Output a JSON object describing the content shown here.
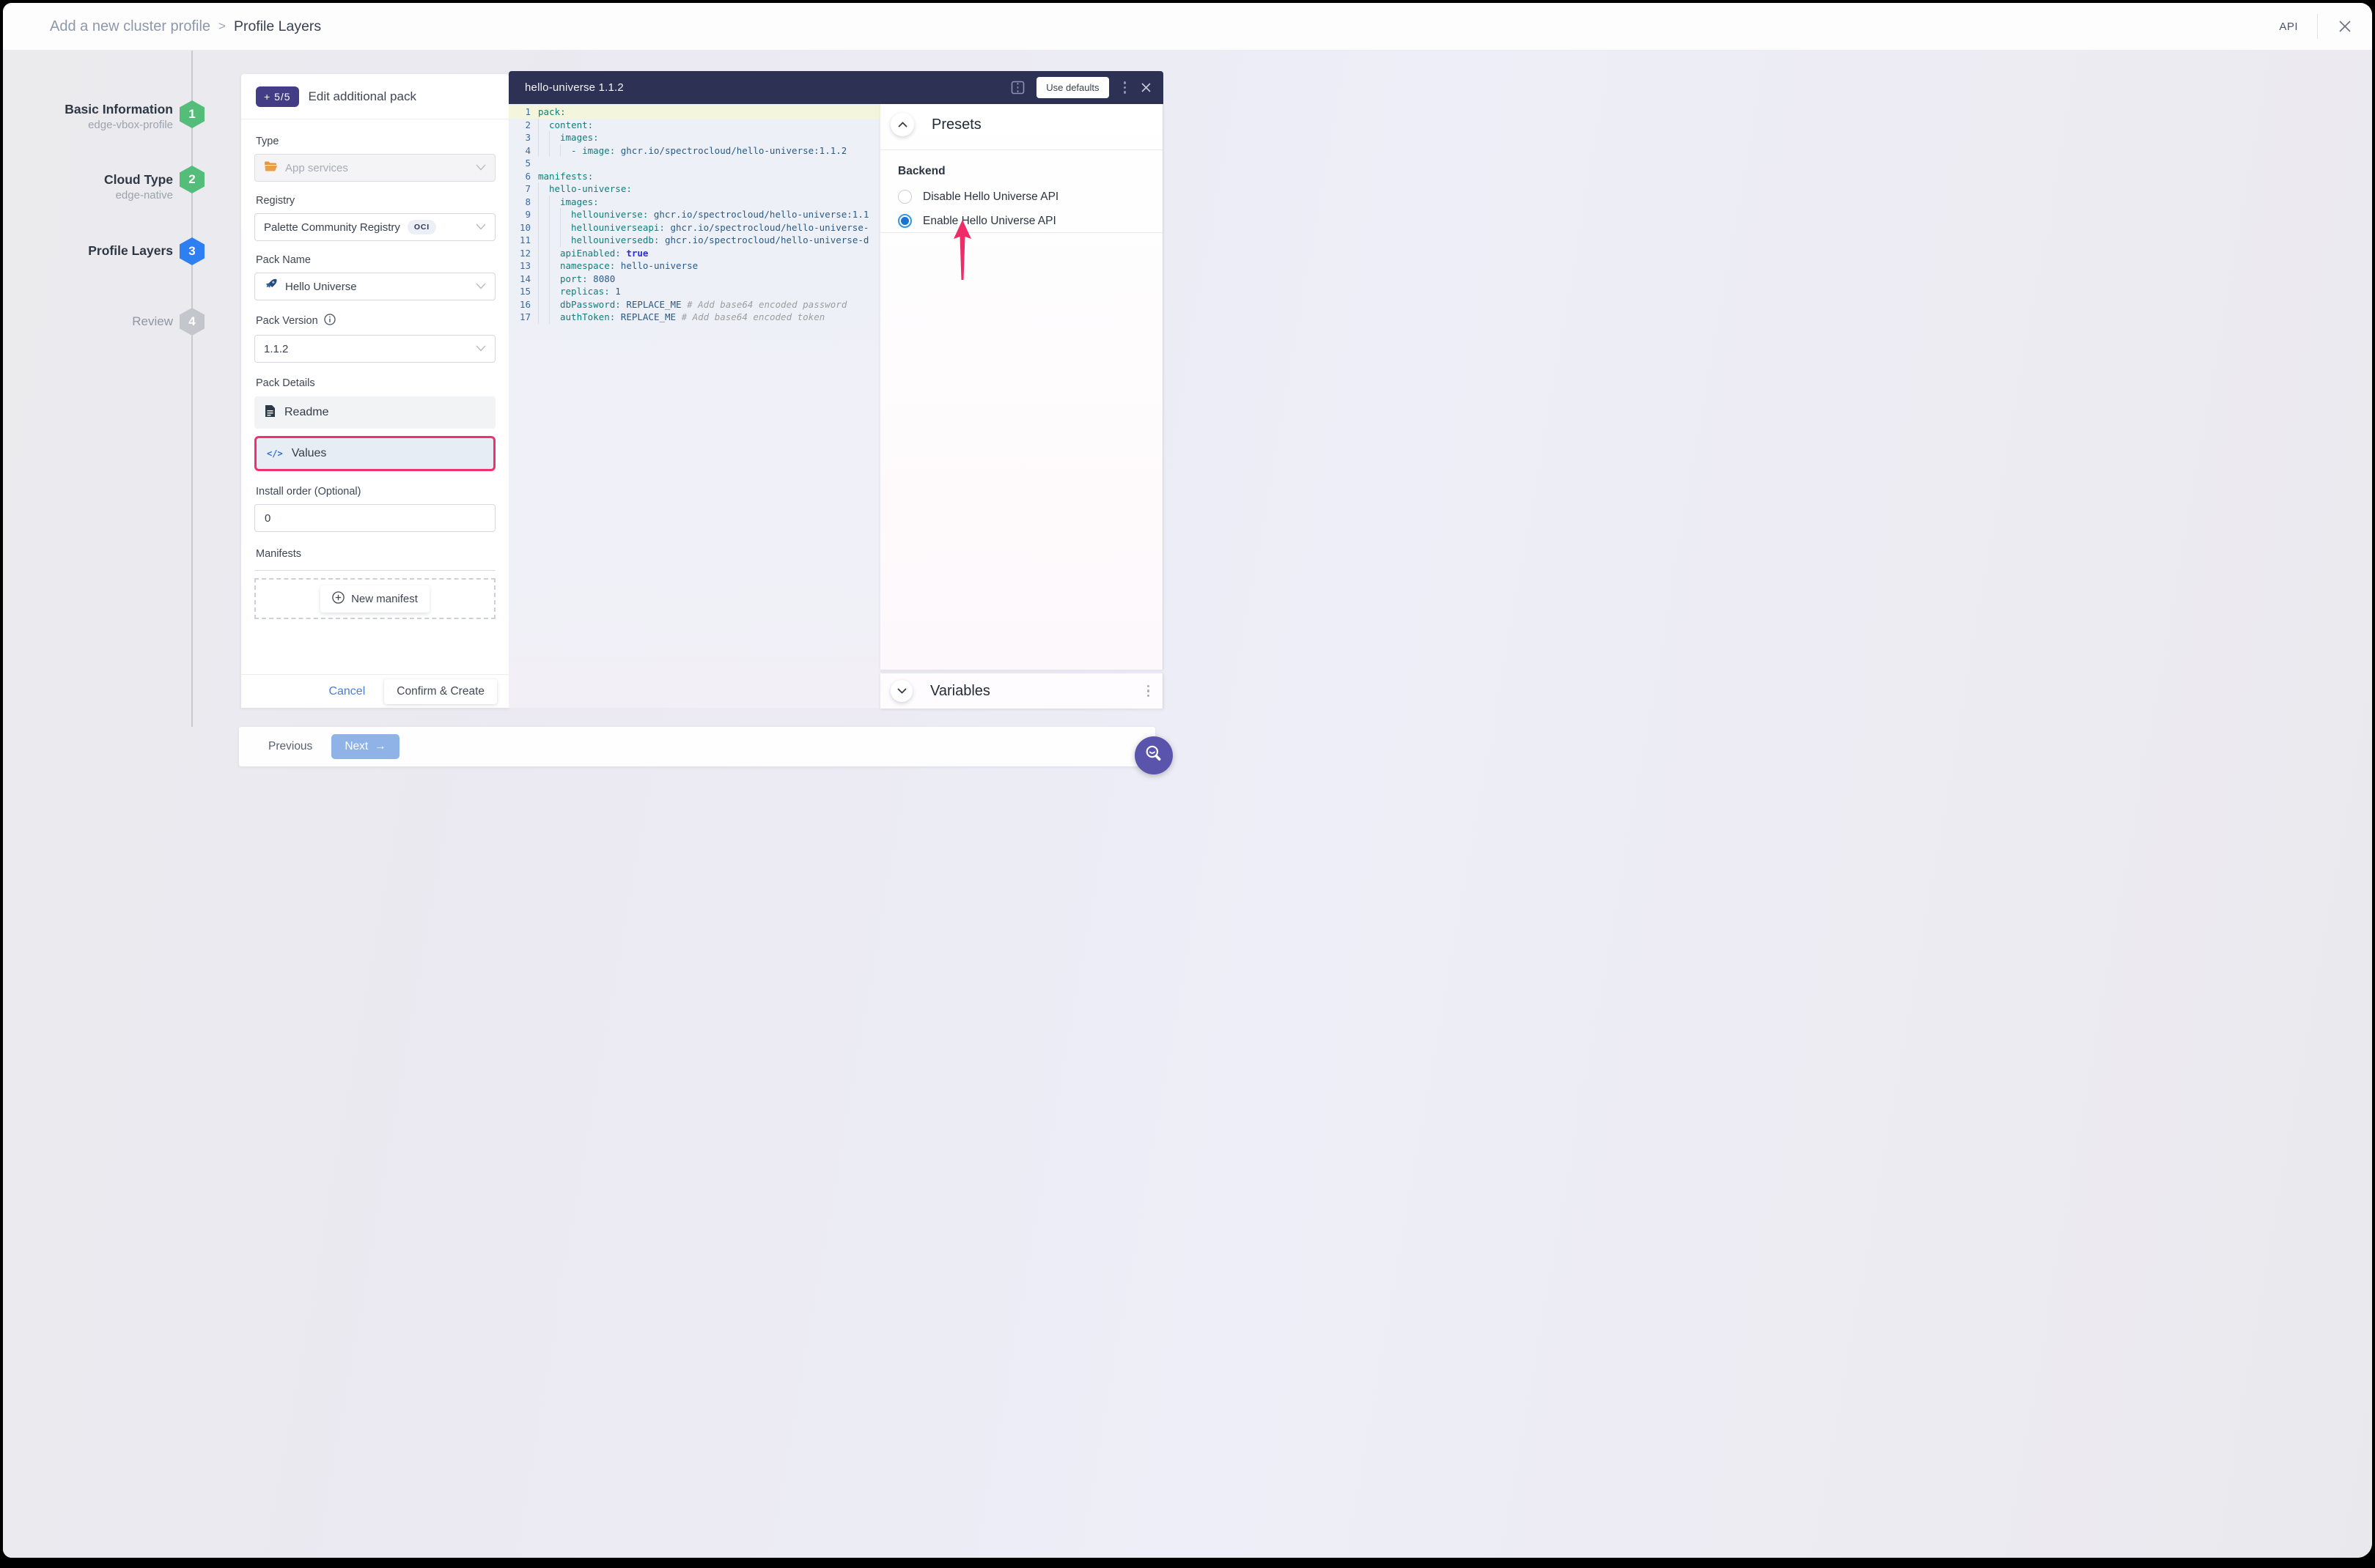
{
  "header": {
    "breadcrumb_parent": "Add a new cluster profile",
    "breadcrumb_sep": ">",
    "breadcrumb_current": "Profile Layers",
    "api_label": "API"
  },
  "stepper": {
    "steps": [
      {
        "num": "1",
        "label": "Basic Information",
        "sublabel": "edge-vbox-profile",
        "state": "done"
      },
      {
        "num": "2",
        "label": "Cloud Type",
        "sublabel": "edge-native",
        "state": "done"
      },
      {
        "num": "3",
        "label": "Profile Layers",
        "sublabel": "",
        "state": "active"
      },
      {
        "num": "4",
        "label": "Review",
        "sublabel": "",
        "state": "todo"
      }
    ]
  },
  "form": {
    "badge": "+ 5/5",
    "title": "Edit additional pack",
    "type": {
      "label": "Type",
      "value": "App services"
    },
    "registry": {
      "label": "Registry",
      "value": "Palette Community Registry",
      "badge": "OCI"
    },
    "pack_name": {
      "label": "Pack Name",
      "value": "Hello Universe"
    },
    "pack_version": {
      "label": "Pack Version",
      "value": "1.1.2"
    },
    "pack_details": {
      "label": "Pack Details",
      "readme": "Readme",
      "values": "Values",
      "values_glyph": "</>"
    },
    "install_order": {
      "label": "Install order (Optional)",
      "value": "0"
    },
    "manifests": {
      "label": "Manifests",
      "new_manifest": "New manifest"
    },
    "cancel": "Cancel",
    "confirm": "Confirm & Create"
  },
  "editor": {
    "title": "hello-universe 1.1.2",
    "use_defaults": "Use defaults",
    "lines": [
      {
        "n": "1",
        "i": 0,
        "hl": true,
        "t": [
          [
            "k",
            "pack:"
          ]
        ]
      },
      {
        "n": "2",
        "i": 1,
        "t": [
          [
            "k",
            "content:"
          ]
        ]
      },
      {
        "n": "3",
        "i": 2,
        "t": [
          [
            "k",
            "images:"
          ]
        ]
      },
      {
        "n": "4",
        "i": 3,
        "t": [
          [
            "d",
            "- "
          ],
          [
            "k",
            "image:"
          ],
          [
            "v",
            " ghcr.io/spectrocloud/hello-universe:1.1.2"
          ]
        ]
      },
      {
        "n": "5",
        "i": 0,
        "t": []
      },
      {
        "n": "6",
        "i": 0,
        "t": [
          [
            "k",
            "manifests:"
          ]
        ]
      },
      {
        "n": "7",
        "i": 1,
        "t": [
          [
            "k",
            "hello-universe:"
          ]
        ]
      },
      {
        "n": "8",
        "i": 2,
        "t": [
          [
            "k",
            "images:"
          ]
        ]
      },
      {
        "n": "9",
        "i": 3,
        "t": [
          [
            "k",
            "hellouniverse:"
          ],
          [
            "v",
            " ghcr.io/spectrocloud/hello-universe:1.1"
          ]
        ]
      },
      {
        "n": "10",
        "i": 3,
        "t": [
          [
            "k",
            "hellouniverseapi:"
          ],
          [
            "v",
            " ghcr.io/spectrocloud/hello-universe-"
          ]
        ]
      },
      {
        "n": "11",
        "i": 3,
        "t": [
          [
            "k",
            "hellouniversedb:"
          ],
          [
            "v",
            " ghcr.io/spectrocloud/hello-universe-d"
          ]
        ]
      },
      {
        "n": "12",
        "i": 2,
        "t": [
          [
            "k",
            "apiEnabled:"
          ],
          [
            "b",
            " true"
          ]
        ]
      },
      {
        "n": "13",
        "i": 2,
        "t": [
          [
            "k",
            "namespace:"
          ],
          [
            "v",
            " hello-universe"
          ]
        ]
      },
      {
        "n": "14",
        "i": 2,
        "t": [
          [
            "k",
            "port:"
          ],
          [
            "v",
            " 8080"
          ]
        ]
      },
      {
        "n": "15",
        "i": 2,
        "t": [
          [
            "k",
            "replicas:"
          ],
          [
            "v",
            " 1"
          ]
        ]
      },
      {
        "n": "16",
        "i": 2,
        "t": [
          [
            "k",
            "dbPassword:"
          ],
          [
            "v",
            " REPLACE_ME "
          ],
          [
            "c",
            "# Add base64 encoded password"
          ]
        ]
      },
      {
        "n": "17",
        "i": 2,
        "t": [
          [
            "k",
            "authToken:"
          ],
          [
            "v",
            " REPLACE_ME "
          ],
          [
            "c",
            "# Add base64 encoded token"
          ]
        ]
      }
    ]
  },
  "presets": {
    "title": "Presets",
    "section": "Backend",
    "options": [
      {
        "label": "Disable Hello Universe API",
        "selected": false
      },
      {
        "label": "Enable Hello Universe API",
        "selected": true
      }
    ]
  },
  "variables": {
    "title": "Variables"
  },
  "footer": {
    "previous": "Previous",
    "next": "Next",
    "next_arrow": "→"
  },
  "colors": {
    "accent_pink": "#f0316d",
    "step_done": "#53bd79",
    "step_active": "#2e7ff2",
    "badge_indigo": "#433d86",
    "editor_header": "#2d3154",
    "fab_purple": "#5a54ad",
    "next_button": "#8fb2e7",
    "radio_checked": "#1b74d3"
  }
}
